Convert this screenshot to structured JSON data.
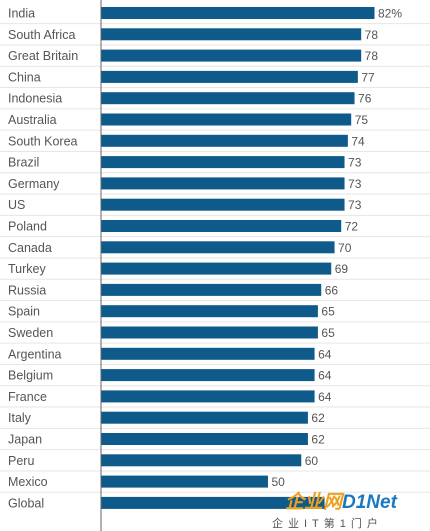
{
  "chart_data": {
    "type": "bar",
    "orientation": "horizontal",
    "categories": [
      "India",
      "South Africa",
      "Great Britain",
      "China",
      "Indonesia",
      "Australia",
      "South Korea",
      "Brazil",
      "Germany",
      "US",
      "Poland",
      "Canada",
      "Turkey",
      "Russia",
      "Spain",
      "Sweden",
      "Argentina",
      "Belgium",
      "France",
      "Italy",
      "Japan",
      "Peru",
      "Mexico",
      "Global"
    ],
    "values": [
      82,
      78,
      78,
      77,
      76,
      75,
      74,
      73,
      73,
      73,
      72,
      70,
      69,
      66,
      65,
      65,
      64,
      64,
      64,
      62,
      62,
      60,
      50,
      67
    ],
    "labels": [
      "82%",
      "78",
      "78",
      "77",
      "76",
      "75",
      "74",
      "73",
      "73",
      "73",
      "72",
      "70",
      "69",
      "66",
      "65",
      "65",
      "64",
      "64",
      "64",
      "62",
      "62",
      "60",
      "50",
      ""
    ],
    "title": "",
    "xlabel": "",
    "ylabel": "",
    "xlim": [
      0,
      82
    ],
    "grid": true,
    "bar_color": "#0e5a8a"
  },
  "watermark": {
    "logo_prefix": "企业网",
    "logo_suffix": "D1Net",
    "tagline": "企业IT第1门户",
    "prefix_color": "#f0a020",
    "suffix_color": "#1a78c2"
  }
}
